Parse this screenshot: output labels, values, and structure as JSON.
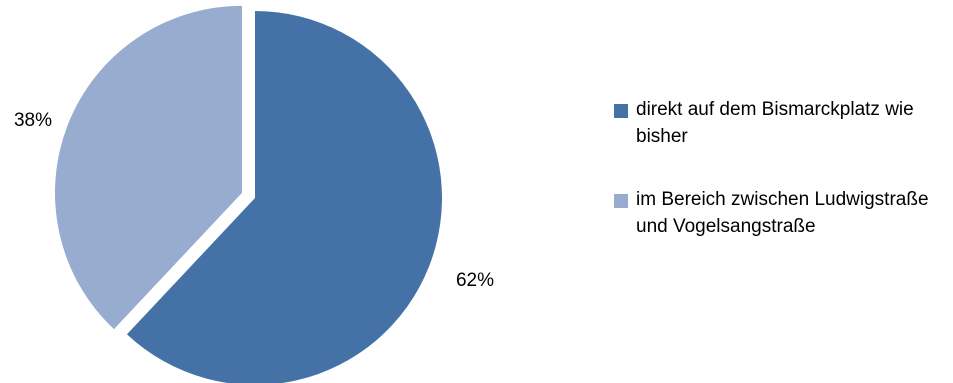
{
  "chart_data": {
    "type": "pie",
    "title": "",
    "slices": [
      {
        "label": "direkt auf dem Bismarckplatz wie bisher",
        "value": 62,
        "value_label": "62%",
        "color": "#4472a6",
        "exploded": false
      },
      {
        "label": "im Bereich zwischen Ludwigstraße und Vogelsangstraße",
        "value": 38,
        "value_label": "38%",
        "color": "#98accf",
        "exploded": true
      }
    ],
    "legend_position": "right"
  }
}
